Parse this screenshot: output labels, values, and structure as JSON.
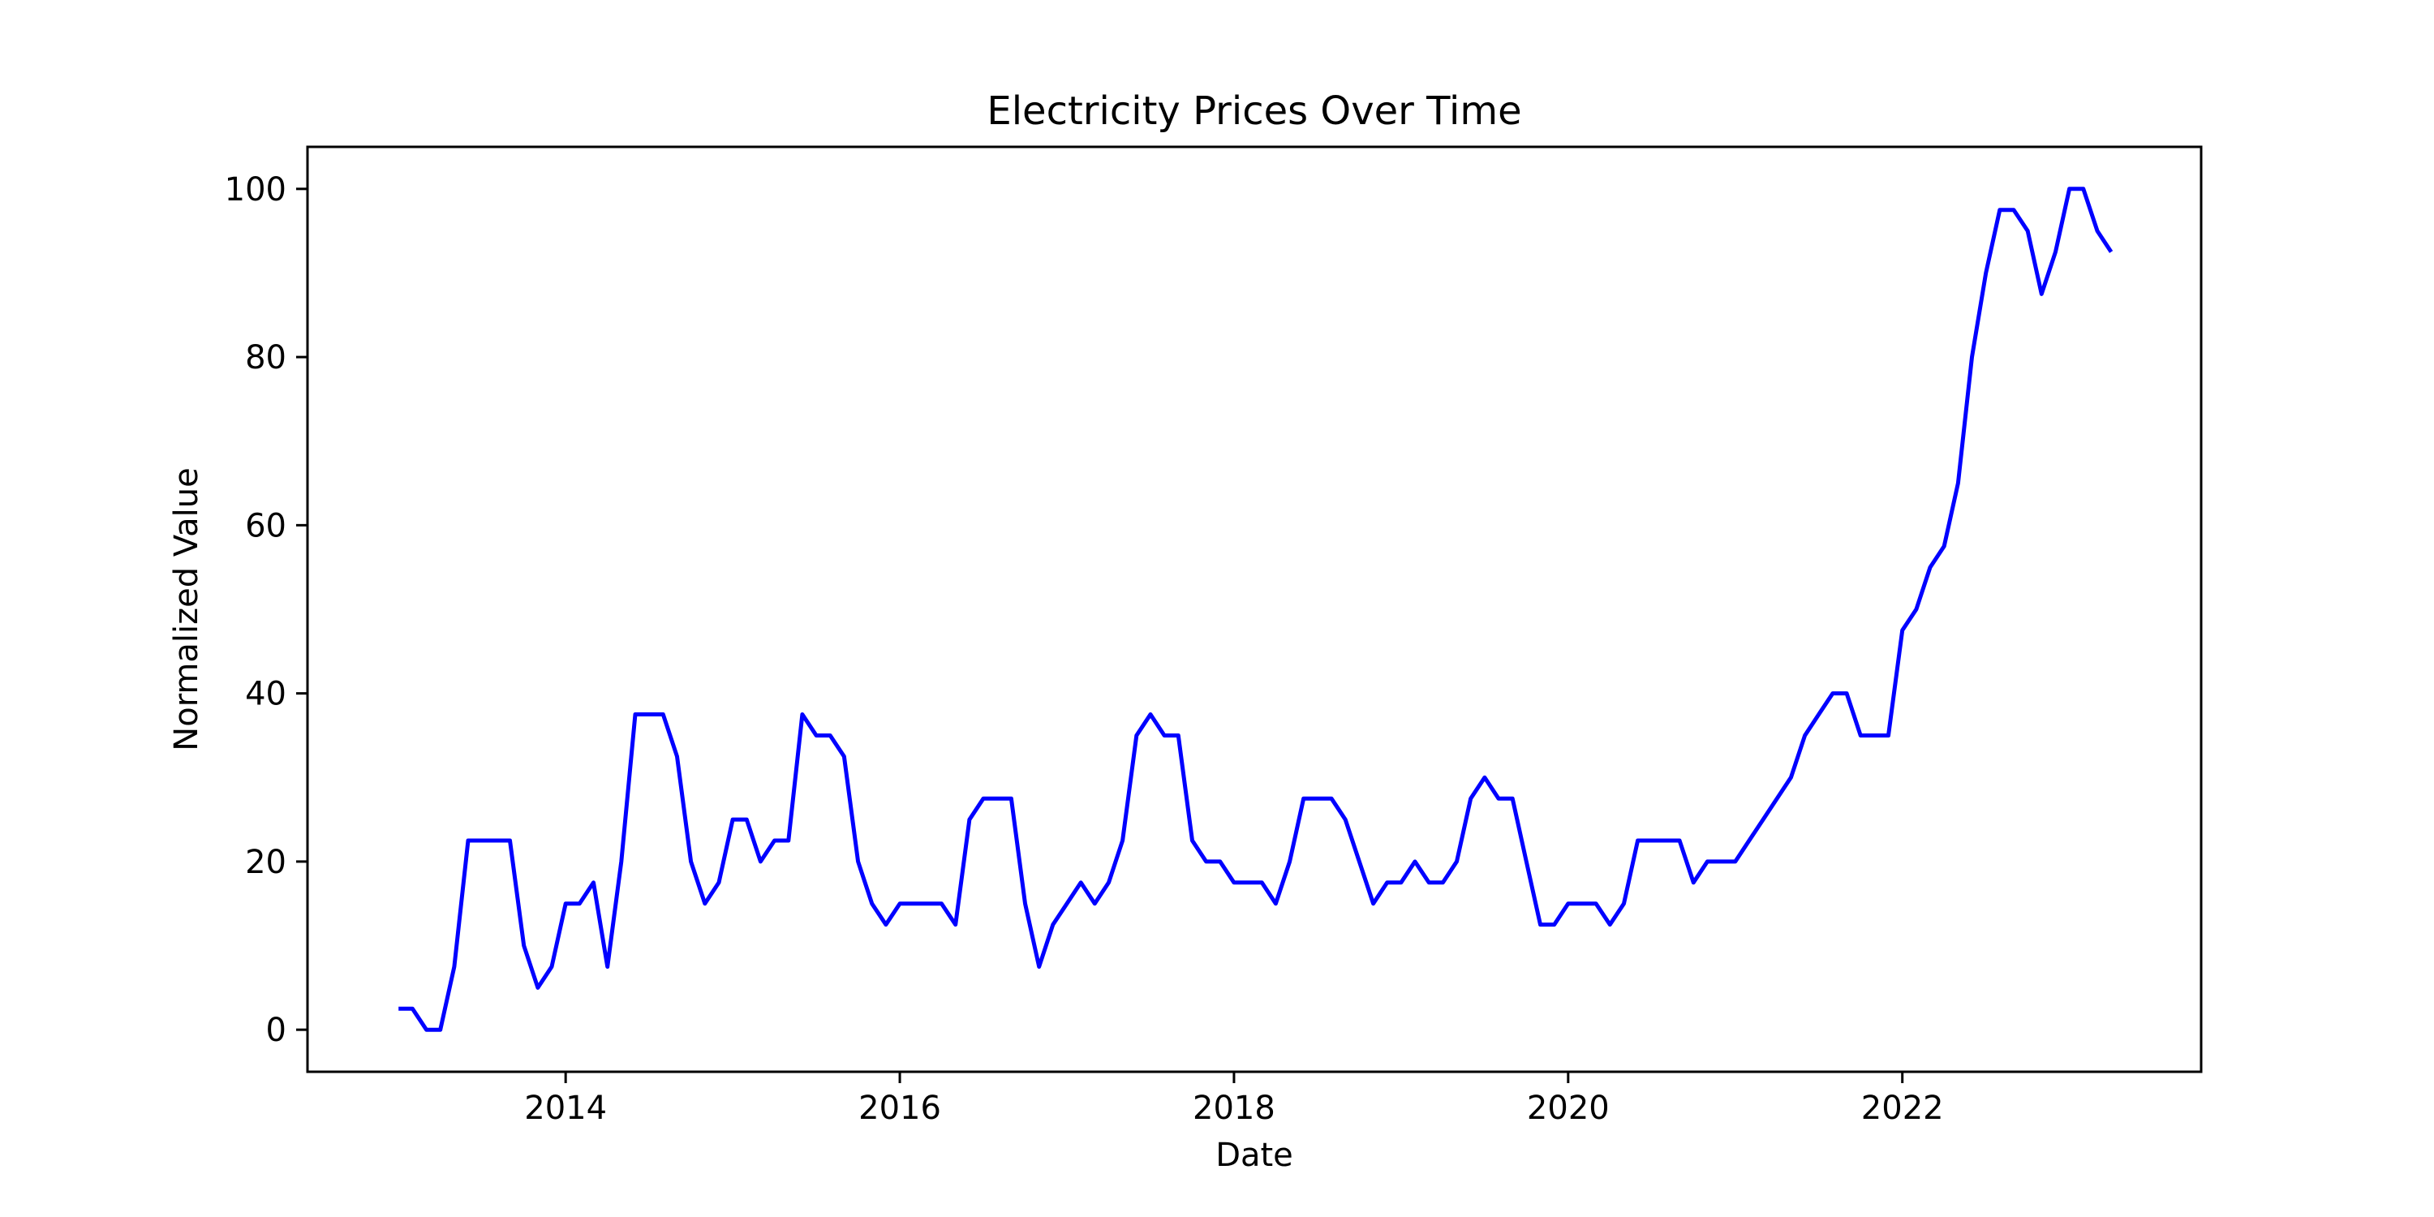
{
  "chart_data": {
    "type": "line",
    "title": "Electricity Prices Over Time",
    "xlabel": "Date",
    "ylabel": "Normalized Value",
    "x_ticks": [
      "2014",
      "2016",
      "2018",
      "2020",
      "2022"
    ],
    "y_ticks": [
      "0",
      "20",
      "40",
      "60",
      "80",
      "100"
    ],
    "xlim": [
      "2012-06-15",
      "2023-10-15"
    ],
    "ylim": [
      -5,
      105
    ],
    "grid": false,
    "legend": "none",
    "series": [
      {
        "color": "#0000ff",
        "x": [
          "2013-01",
          "2013-02",
          "2013-03",
          "2013-04",
          "2013-05",
          "2013-06",
          "2013-07",
          "2013-08",
          "2013-09",
          "2013-10",
          "2013-11",
          "2013-12",
          "2014-01",
          "2014-02",
          "2014-03",
          "2014-04",
          "2014-05",
          "2014-06",
          "2014-07",
          "2014-08",
          "2014-09",
          "2014-10",
          "2014-11",
          "2014-12",
          "2015-01",
          "2015-02",
          "2015-03",
          "2015-04",
          "2015-05",
          "2015-06",
          "2015-07",
          "2015-08",
          "2015-09",
          "2015-10",
          "2015-11",
          "2015-12",
          "2016-01",
          "2016-02",
          "2016-03",
          "2016-04",
          "2016-05",
          "2016-06",
          "2016-07",
          "2016-08",
          "2016-09",
          "2016-10",
          "2016-11",
          "2016-12",
          "2017-01",
          "2017-02",
          "2017-03",
          "2017-04",
          "2017-05",
          "2017-06",
          "2017-07",
          "2017-08",
          "2017-09",
          "2017-10",
          "2017-11",
          "2017-12",
          "2018-01",
          "2018-02",
          "2018-03",
          "2018-04",
          "2018-05",
          "2018-06",
          "2018-07",
          "2018-08",
          "2018-09",
          "2018-10",
          "2018-11",
          "2018-12",
          "2019-01",
          "2019-02",
          "2019-03",
          "2019-04",
          "2019-05",
          "2019-06",
          "2019-07",
          "2019-08",
          "2019-09",
          "2019-10",
          "2019-11",
          "2019-12",
          "2020-01",
          "2020-02",
          "2020-03",
          "2020-04",
          "2020-05",
          "2020-06",
          "2020-07",
          "2020-08",
          "2020-09",
          "2020-10",
          "2020-11",
          "2020-12",
          "2021-01",
          "2021-02",
          "2021-03",
          "2021-04",
          "2021-05",
          "2021-06",
          "2021-07",
          "2021-08",
          "2021-09",
          "2021-10",
          "2021-11",
          "2021-12",
          "2022-01",
          "2022-02",
          "2022-03",
          "2022-04",
          "2022-05",
          "2022-06",
          "2022-07",
          "2022-08",
          "2022-09",
          "2022-10",
          "2022-11",
          "2022-12",
          "2023-01",
          "2023-02",
          "2023-03",
          "2023-04"
        ],
        "y": [
          2.5,
          2.5,
          0,
          0,
          7.5,
          22.5,
          22.5,
          22.5,
          22.5,
          10,
          5,
          7.5,
          15,
          15,
          17.5,
          7.5,
          20,
          37.5,
          37.5,
          37.5,
          32.5,
          20,
          15,
          17.5,
          25,
          25,
          20,
          22.5,
          22.5,
          37.5,
          35,
          35,
          32.5,
          20,
          15,
          12.5,
          15,
          15,
          15,
          15,
          12.5,
          25,
          27.5,
          27.5,
          27.5,
          15,
          7.5,
          12.5,
          15,
          17.5,
          15,
          17.5,
          22.5,
          35,
          37.5,
          35,
          35,
          22.5,
          20,
          20,
          17.5,
          17.5,
          17.5,
          15,
          20,
          27.5,
          27.5,
          27.5,
          25,
          20,
          15,
          17.5,
          17.5,
          20,
          17.5,
          17.5,
          20,
          27.5,
          30,
          27.5,
          27.5,
          20,
          12.5,
          12.5,
          15,
          15,
          15,
          12.5,
          15,
          22.5,
          22.5,
          22.5,
          22.5,
          17.5,
          20,
          20,
          20,
          22.5,
          25,
          27.5,
          30,
          35,
          37.5,
          40,
          40,
          35,
          35,
          35,
          47.5,
          50,
          55,
          57.5,
          65,
          80,
          90,
          97.5,
          97.5,
          95,
          87.5,
          92.5,
          100,
          100,
          95,
          92.5
        ]
      }
    ]
  }
}
